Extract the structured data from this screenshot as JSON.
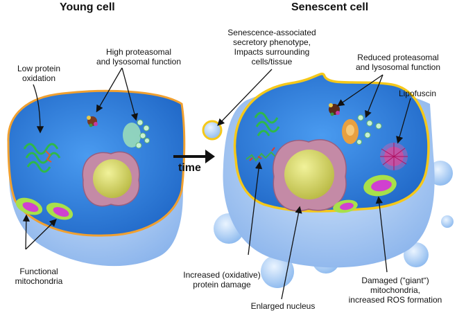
{
  "titles": {
    "young": "Young cell",
    "senescent": "Senescent cell",
    "time": "time"
  },
  "young_labels": {
    "low_protein_oxidation": "Low protein\noxidation",
    "high_proteasomal": "High proteasomal\nand lysosomal function",
    "functional_mitochondria": "Functional\nmitochondria"
  },
  "senescent_labels": {
    "sasp": "Senescence-associated\nsecretory phenotype,\nImpacts surrounding\ncells/tissue",
    "reduced_proteasomal": "Reduced proteasomal\nand lysosomal function",
    "lipofuscin": "Lipofuscin",
    "protein_damage": "Increased (oxidative)\nprotein damage",
    "enlarged_nucleus": "Enlarged nucleus",
    "damaged_mitochondria": "Damaged (“giant“)\nmitochondria,\nincreased ROS formation"
  },
  "colors": {
    "cytoplasm": "#2a7fdc",
    "membrane_body": "#a9c8f2",
    "membrane_edge_young": "#f0a030",
    "membrane_edge_senescent": "#f5c81a",
    "nucleus_envelope": "#c48aa6",
    "nucleolus": "#d8d65a",
    "mito_outer": "#a8e04a",
    "mito_inner": "#d040d0",
    "lysosome": "#9fe0b8",
    "lipofuscin": "#ff5aa0"
  }
}
